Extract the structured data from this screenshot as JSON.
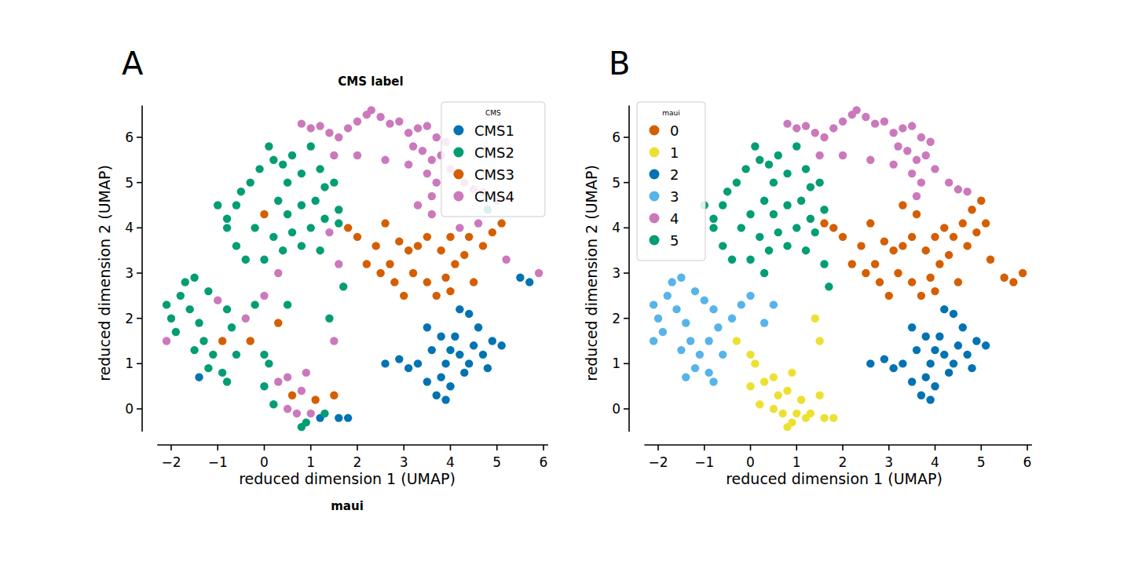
{
  "chart_data": [
    {
      "type": "scatter",
      "title": "CMS label",
      "annotations": [
        "A"
      ],
      "x_label": "reduced dimension 1 (UMAP)",
      "y_label": "reduced dimension 2 (UMAP)",
      "legend": "upper right",
      "legend_title": "CMS",
      "marker": "circle",
      "grid": false,
      "xlim": [
        -2.3,
        6.1
      ],
      "ylim": [
        -0.5,
        6.7
      ],
      "xticks": [
        {
          "value": -2,
          "label": "−2"
        },
        {
          "value": -1,
          "label": "−1"
        },
        0,
        1,
        2,
        3,
        4,
        5,
        6
      ],
      "yticks": [
        0,
        1,
        2,
        3,
        4,
        5,
        6
      ],
      "series": [
        {
          "name": "CMS1",
          "color": "#0173b2",
          "x": [
            -1.4,
            1.2,
            1.6,
            1.8,
            5.5,
            5.7,
            2.6,
            2.9,
            3.1,
            3.3,
            3.5,
            3.7,
            3.8,
            3.9,
            4.0,
            4.1,
            4.2,
            4.3,
            4.4,
            4.5,
            4.6,
            4.7,
            4.8,
            3.8,
            3.6,
            4.0,
            4.4,
            4.2,
            5.1,
            3.5,
            4.9,
            3.9
          ],
          "values": [
            0.7,
            -0.2,
            -0.2,
            -0.2,
            2.9,
            2.8,
            1.0,
            1.1,
            0.9,
            1.0,
            0.6,
            0.3,
            0.7,
            1.0,
            1.3,
            1.6,
            1.2,
            0.8,
            1.0,
            1.4,
            1.8,
            1.2,
            0.9,
            1.6,
            1.3,
            0.5,
            2.1,
            2.2,
            1.4,
            1.8,
            1.5,
            0.2
          ]
        },
        {
          "name": "CMS2",
          "color": "#029e73",
          "x": [
            -1.0,
            -0.8,
            -0.6,
            -0.5,
            -0.3,
            -0.1,
            0.1,
            0.2,
            0.4,
            0.5,
            0.6,
            0.8,
            1.0,
            1.2,
            0.3,
            -0.2,
            0.5,
            0.8,
            1.1,
            1.3,
            1.5,
            0.2,
            0.6,
            1.0,
            1.3,
            1.6,
            0.4,
            0.8,
            1.2,
            -0.6,
            -0.4,
            0.0,
            1.7,
            -0.8,
            -2.1,
            -2.0,
            -1.9,
            -1.8,
            -1.7,
            -1.5,
            -1.6,
            -1.4,
            -1.2,
            -0.8,
            -1.3,
            -1.1,
            -0.7,
            -1.5,
            -1.2,
            -0.9,
            -0.8,
            -0.6,
            -0.2,
            0.5,
            0.0,
            0.1,
            0.0,
            0.2,
            0.9,
            1.3,
            1.4,
            0.8,
            1.6,
            4.8
          ],
          "values": [
            4.5,
            4.2,
            4.5,
            4.8,
            5.0,
            5.3,
            5.8,
            5.5,
            5.4,
            5.0,
            5.6,
            5.2,
            5.8,
            5.3,
            4.6,
            4.0,
            4.3,
            4.5,
            4.6,
            4.9,
            5.0,
            3.8,
            3.9,
            4.0,
            4.2,
            4.4,
            3.5,
            3.6,
            3.5,
            3.6,
            3.3,
            3.3,
            2.7,
            4.0,
            2.3,
            2.0,
            1.7,
            2.5,
            2.8,
            2.9,
            2.2,
            1.9,
            2.6,
            2.2,
            1.5,
            1.2,
            1.8,
            1.3,
            0.9,
            0.8,
            0.6,
            1.2,
            2.3,
            2.3,
            1.2,
            1.0,
            0.5,
            0.1,
            -0.3,
            -0.1,
            2.0,
            -0.4,
            4.1,
            4.4
          ]
        },
        {
          "name": "CMS3",
          "color": "#d55e00",
          "x": [
            0.0,
            0.3,
            -0.9,
            -0.3,
            0.6,
            1.1,
            1.5,
            1.8,
            2.0,
            2.2,
            2.5,
            2.8,
            2.4,
            2.6,
            2.9,
            3.1,
            3.3,
            3.5,
            3.2,
            3.5,
            3.7,
            3.9,
            4.1,
            4.3,
            3.8,
            4.0,
            4.4,
            4.9,
            4.7,
            4.5,
            3.0,
            2.7,
            4.0,
            5.1
          ],
          "values": [
            4.3,
            1.9,
            1.5,
            1.5,
            0.3,
            0.2,
            0.3,
            4.0,
            3.8,
            3.2,
            3.0,
            2.8,
            3.6,
            4.1,
            3.7,
            3.5,
            3.6,
            3.8,
            3.0,
            2.8,
            2.5,
            2.9,
            3.2,
            3.4,
            3.5,
            3.8,
            3.8,
            3.9,
            3.6,
            2.8,
            2.5,
            3.2,
            2.6,
            4.1
          ]
        },
        {
          "name": "CMS4",
          "color": "#cc78bc",
          "x": [
            0.8,
            1.0,
            1.2,
            1.4,
            1.6,
            1.8,
            2.0,
            2.2,
            2.3,
            2.5,
            2.7,
            2.9,
            3.1,
            3.3,
            3.5,
            3.7,
            3.9,
            3.4,
            3.6,
            3.8,
            3.5,
            3.7,
            4.0,
            4.3,
            4.5,
            4.7,
            2.0,
            1.5,
            2.6,
            3.2,
            3.6,
            3.1,
            1.6,
            0.3,
            1.4,
            -2.1,
            -1.0,
            -0.4,
            0.0,
            0.3,
            0.5,
            0.7,
            0.8,
            0.9,
            1.0,
            1.5,
            0.5,
            4.2,
            4.6,
            5.0,
            5.2,
            5.9,
            3.6,
            3.3
          ],
          "values": [
            6.3,
            6.2,
            6.25,
            6.1,
            6.0,
            6.2,
            6.35,
            6.5,
            6.6,
            6.45,
            6.3,
            6.35,
            6.1,
            6.2,
            6.25,
            6.0,
            5.9,
            5.7,
            5.5,
            5.6,
            5.2,
            5.0,
            5.3,
            5.0,
            4.85,
            4.8,
            5.6,
            5.6,
            5.5,
            5.8,
            4.7,
            5.4,
            3.2,
            3.0,
            3.9,
            1.5,
            2.4,
            2.0,
            2.5,
            0.6,
            0.7,
            -0.1,
            0.4,
            0.8,
            -0.1,
            1.5,
            0.0,
            4.0,
            4.1,
            4.6,
            3.3,
            3.0,
            4.3,
            4.5
          ]
        }
      ]
    },
    {
      "type": "scatter",
      "title": "maui",
      "annotations": [
        "B"
      ],
      "x_label": "reduced dimension 1 (UMAP)",
      "y_label": "reduced dimension 2 (UMAP)",
      "legend": "upper left",
      "legend_title": "maui",
      "marker": "circle",
      "grid": false,
      "xlim": [
        -2.3,
        6.1
      ],
      "ylim": [
        -0.5,
        6.7
      ],
      "xticks": [
        {
          "value": -2,
          "label": "−2"
        },
        {
          "value": -1,
          "label": "−1"
        },
        0,
        1,
        2,
        3,
        4,
        5,
        6
      ],
      "yticks": [
        0,
        1,
        2,
        3,
        4,
        5,
        6
      ],
      "series": [
        {
          "name": "0",
          "color": "#d55e00",
          "x": [
            1.6,
            1.8,
            2.0,
            2.2,
            2.5,
            2.8,
            2.4,
            2.6,
            2.9,
            3.1,
            3.3,
            3.5,
            3.2,
            3.5,
            3.7,
            3.9,
            4.1,
            4.3,
            3.8,
            4.0,
            4.2,
            4.4,
            4.6,
            4.8,
            5.0,
            4.9,
            4.7,
            5.2,
            5.5,
            5.7,
            5.9,
            4.5,
            3.0,
            3.6,
            3.3,
            2.7,
            4.0,
            5.1
          ],
          "values": [
            4.1,
            4.0,
            3.8,
            3.2,
            3.0,
            2.8,
            3.6,
            4.1,
            3.7,
            3.5,
            3.6,
            3.8,
            3.0,
            2.8,
            2.5,
            2.9,
            3.2,
            3.4,
            3.5,
            3.8,
            4.0,
            3.8,
            4.1,
            4.4,
            4.6,
            3.9,
            3.6,
            3.3,
            2.9,
            2.8,
            3.0,
            2.8,
            2.5,
            4.3,
            4.5,
            3.2,
            2.6,
            4.1
          ]
        },
        {
          "name": "1",
          "color": "#ece133",
          "x": [
            -0.3,
            0.0,
            0.1,
            0.3,
            0.0,
            0.2,
            0.5,
            0.6,
            0.7,
            0.8,
            0.9,
            0.9,
            1.0,
            1.1,
            1.2,
            1.3,
            1.5,
            1.6,
            1.8,
            1.4,
            1.5,
            0.5,
            0.8
          ],
          "values": [
            1.5,
            1.2,
            1.0,
            0.6,
            0.5,
            0.1,
            0.7,
            0.3,
            -0.1,
            0.4,
            0.8,
            -0.3,
            -0.1,
            0.2,
            -0.2,
            -0.1,
            0.3,
            -0.2,
            -0.2,
            2.0,
            1.5,
            0.0,
            -0.4
          ]
        },
        {
          "name": "2",
          "color": "#0173b2",
          "x": [
            2.6,
            2.9,
            3.1,
            3.3,
            3.5,
            3.7,
            3.8,
            3.9,
            4.0,
            4.1,
            4.2,
            4.3,
            4.4,
            4.5,
            4.6,
            4.7,
            4.8,
            3.8,
            3.6,
            4.0,
            4.4,
            4.2,
            5.1,
            3.5,
            4.9,
            3.9
          ],
          "values": [
            1.0,
            1.1,
            0.9,
            1.0,
            0.6,
            0.3,
            0.7,
            1.0,
            1.3,
            1.6,
            1.2,
            0.8,
            1.0,
            1.4,
            1.8,
            1.2,
            0.9,
            1.6,
            1.3,
            0.5,
            2.1,
            2.2,
            1.4,
            1.8,
            1.5,
            0.2
          ]
        },
        {
          "name": "3",
          "color": "#56b4e9",
          "x": [
            -2.1,
            -2.0,
            -1.9,
            -1.8,
            -1.7,
            -1.5,
            -1.6,
            -1.4,
            -1.2,
            -1.0,
            -0.8,
            -1.3,
            -1.1,
            -0.9,
            -0.7,
            -1.5,
            -1.2,
            -0.9,
            -0.8,
            -1.4,
            -0.6,
            -0.4,
            -0.2,
            0.0,
            0.3,
            0.5,
            -2.1
          ],
          "values": [
            2.3,
            2.0,
            1.7,
            2.5,
            2.8,
            2.9,
            2.2,
            1.9,
            2.6,
            2.4,
            2.2,
            1.5,
            1.2,
            1.5,
            1.8,
            1.3,
            0.9,
            0.8,
            0.6,
            0.7,
            1.2,
            2.0,
            2.3,
            2.5,
            1.9,
            2.3,
            1.5
          ]
        },
        {
          "name": "4",
          "color": "#cc78bc",
          "x": [
            0.8,
            1.0,
            1.2,
            1.4,
            1.6,
            1.8,
            2.0,
            2.2,
            2.3,
            2.5,
            2.7,
            2.9,
            3.1,
            3.3,
            3.5,
            3.7,
            3.9,
            3.4,
            3.6,
            3.8,
            3.5,
            3.7,
            4.0,
            4.3,
            4.5,
            4.7,
            2.0,
            1.5,
            2.6,
            3.2,
            3.6,
            3.1
          ],
          "values": [
            6.3,
            6.2,
            6.25,
            6.1,
            6.0,
            6.2,
            6.35,
            6.5,
            6.6,
            6.45,
            6.3,
            6.35,
            6.1,
            6.2,
            6.25,
            6.0,
            5.9,
            5.7,
            5.5,
            5.6,
            5.2,
            5.0,
            5.3,
            5.0,
            4.85,
            4.8,
            5.6,
            5.6,
            5.5,
            5.8,
            4.7,
            5.4
          ]
        },
        {
          "name": "5",
          "color": "#029e73",
          "x": [
            -1.0,
            -0.8,
            -0.6,
            -0.5,
            -0.3,
            -0.1,
            0.1,
            0.2,
            0.4,
            0.5,
            0.6,
            0.8,
            1.0,
            1.2,
            0.3,
            0.0,
            -0.2,
            0.5,
            0.8,
            1.1,
            1.3,
            1.5,
            0.2,
            0.6,
            1.0,
            1.3,
            1.6,
            0.4,
            0.8,
            1.2,
            -0.6,
            -0.4,
            0.0,
            1.6,
            1.7,
            -0.8,
            0.3,
            1.4
          ],
          "values": [
            4.5,
            4.2,
            4.5,
            4.8,
            5.0,
            5.3,
            5.8,
            5.5,
            5.4,
            5.0,
            5.6,
            5.2,
            5.8,
            5.3,
            4.6,
            4.3,
            4.0,
            4.3,
            4.5,
            4.6,
            4.9,
            5.0,
            3.8,
            3.9,
            4.0,
            4.2,
            4.4,
            3.5,
            3.6,
            3.5,
            3.6,
            3.3,
            3.3,
            3.2,
            2.7,
            4.0,
            3.0,
            3.9
          ]
        }
      ]
    }
  ]
}
